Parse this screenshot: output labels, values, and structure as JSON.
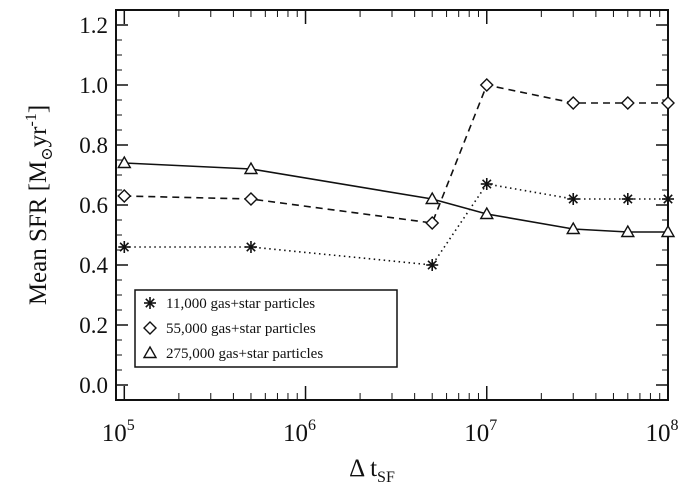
{
  "chart_data": {
    "type": "line",
    "xscale": "log",
    "xlim": [
      90000,
      100000000
    ],
    "ylim": [
      -0.05,
      1.25
    ],
    "xticks": [
      {
        "value": 100000,
        "base": "10",
        "exp": "5"
      },
      {
        "value": 1000000,
        "base": "10",
        "exp": "6"
      },
      {
        "value": 10000000,
        "base": "10",
        "exp": "7"
      },
      {
        "value": 100000000,
        "base": "10",
        "exp": "8"
      }
    ],
    "yticks": [
      "0.0",
      "0.2",
      "0.4",
      "0.6",
      "0.8",
      "1.0",
      "1.2"
    ],
    "xlabel": {
      "main": "Δ t",
      "sub": "SF"
    },
    "ylabel": {
      "main": "Mean SFR [M",
      "sub": "⊙",
      "mid": "yr",
      "sup": "-1",
      "end": "]"
    },
    "legend_position": "bottom-left",
    "grid": false,
    "series": [
      {
        "name": "11,000 gas+star particles",
        "marker": "asterisk",
        "dash": "dotted",
        "x": [
          100000,
          500000,
          5000000,
          10000000,
          30000000,
          60000000,
          100000000
        ],
        "y": [
          0.46,
          0.46,
          0.4,
          0.67,
          0.62,
          0.62,
          0.62
        ]
      },
      {
        "name": "55,000 gas+star particles",
        "marker": "diamond",
        "dash": "dashed",
        "x": [
          100000,
          500000,
          5000000,
          10000000,
          30000000,
          60000000,
          100000000
        ],
        "y": [
          0.63,
          0.62,
          0.54,
          1.0,
          0.94,
          0.94,
          0.94
        ]
      },
      {
        "name": "275,000 gas+star particles",
        "marker": "triangle",
        "dash": "solid",
        "x": [
          100000,
          500000,
          5000000,
          10000000,
          30000000,
          60000000,
          100000000
        ],
        "y": [
          0.74,
          0.72,
          0.62,
          0.57,
          0.52,
          0.51,
          0.51
        ]
      }
    ]
  }
}
